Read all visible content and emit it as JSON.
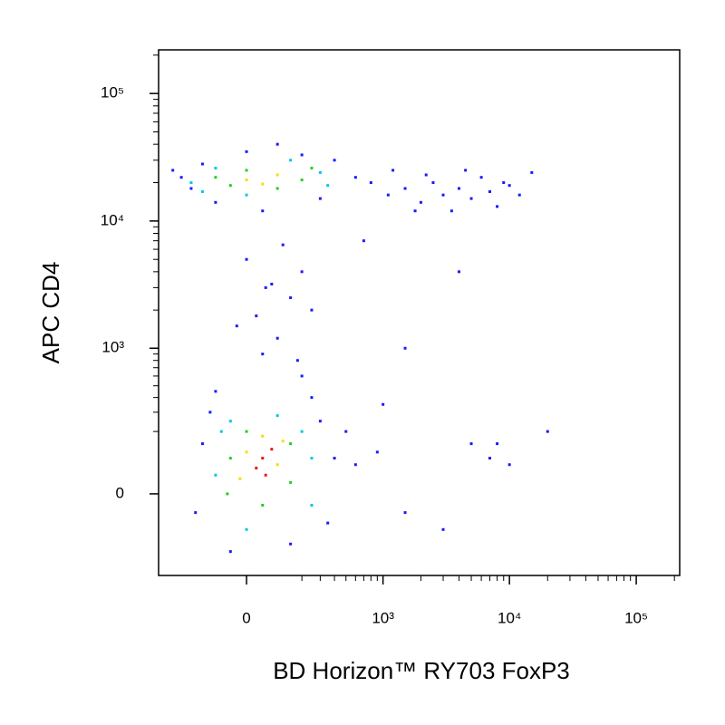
{
  "chart_data": {
    "type": "scatter",
    "x_label": "BD Horizon™ RY703 FoxP3",
    "y_label": "APC CD4",
    "scale": "biexponential",
    "xlim": [
      -400,
      220000
    ],
    "ylim": [
      -300,
      220000
    ],
    "xticks": [
      0,
      {
        "value": 1000,
        "label": "10³"
      },
      {
        "value": 10000,
        "label": "10⁴"
      },
      {
        "value": 100000,
        "label": "10⁵"
      }
    ],
    "yticks": [
      0,
      {
        "value": 1000,
        "label": "10³"
      },
      {
        "value": 10000,
        "label": "10⁴"
      },
      {
        "value": 100000,
        "label": "10⁵"
      }
    ],
    "x_minor_ticks": [
      200,
      300,
      400,
      500,
      600,
      700,
      800,
      900,
      2000,
      3000,
      4000,
      5000,
      6000,
      7000,
      8000,
      9000,
      20000,
      30000,
      40000,
      50000,
      60000,
      70000,
      80000,
      90000,
      200000
    ],
    "y_minor_ticks": [
      200,
      300,
      400,
      500,
      600,
      700,
      800,
      900,
      2000,
      3000,
      4000,
      5000,
      6000,
      7000,
      8000,
      9000,
      20000,
      30000,
      40000,
      50000,
      60000,
      70000,
      80000,
      90000,
      200000
    ],
    "series": [
      {
        "color": "#1a1aff",
        "x": [
          -180,
          -150,
          -120,
          300,
          400,
          600,
          900,
          350,
          150,
          -50,
          250,
          500,
          1500,
          3000,
          5000,
          7000,
          10000,
          20000,
          8000,
          -100,
          200,
          1500,
          1000,
          50,
          100,
          30,
          150,
          80,
          200,
          0,
          120,
          -30,
          250,
          180,
          60,
          -300,
          -200,
          400,
          600,
          100,
          50,
          800,
          1200,
          1500,
          2000,
          2500,
          3000,
          3500,
          4000,
          5000,
          6000,
          7000,
          8000,
          10000,
          12000,
          15000,
          2200,
          4500,
          9000,
          1100,
          1800,
          4000,
          700,
          -250,
          -150,
          0,
          300,
          200,
          -100
        ],
        "y": [
          -50,
          150,
          300,
          250,
          100,
          80,
          120,
          -80,
          -150,
          -180,
          400,
          200,
          -50,
          -100,
          150,
          100,
          80,
          200,
          150,
          450,
          600,
          1000,
          350,
          900,
          1200,
          1800,
          2500,
          3200,
          4000,
          5000,
          6500,
          1500,
          2000,
          800,
          3000,
          25000,
          18000,
          30000,
          22000,
          40000,
          12000,
          20000,
          25000,
          18000,
          14000,
          20000,
          16000,
          12000,
          18000,
          15000,
          22000,
          17000,
          13000,
          19000,
          16000,
          24000,
          23000,
          25000,
          20000,
          16000,
          12000,
          4000,
          7000,
          22000,
          28000,
          35000,
          15000,
          33000,
          14000
        ]
      },
      {
        "color": "#00c8e6",
        "x": [
          -100,
          -80,
          250,
          250,
          0,
          100,
          -50,
          200,
          -200,
          -100,
          300,
          350,
          0,
          150,
          -150
        ],
        "y": [
          50,
          200,
          100,
          -30,
          -100,
          280,
          250,
          200,
          20000,
          26000,
          24000,
          19000,
          16000,
          30000,
          17000
        ]
      },
      {
        "color": "#22d01e",
        "x": [
          -50,
          0,
          150,
          150,
          50,
          -60,
          -100,
          0,
          200,
          100,
          -50,
          250
        ],
        "y": [
          100,
          200,
          150,
          30,
          -30,
          0,
          22000,
          25000,
          21000,
          18000,
          19000,
          26000
        ]
      },
      {
        "color": "#f0e000",
        "x": [
          0,
          100,
          50,
          -20,
          120,
          0,
          100,
          50
        ],
        "y": [
          120,
          80,
          180,
          40,
          160,
          21000,
          23000,
          19500
        ]
      },
      {
        "color": "#e81a0c",
        "x": [
          50,
          30,
          80,
          60
        ],
        "y": [
          100,
          70,
          130,
          50
        ]
      }
    ]
  }
}
